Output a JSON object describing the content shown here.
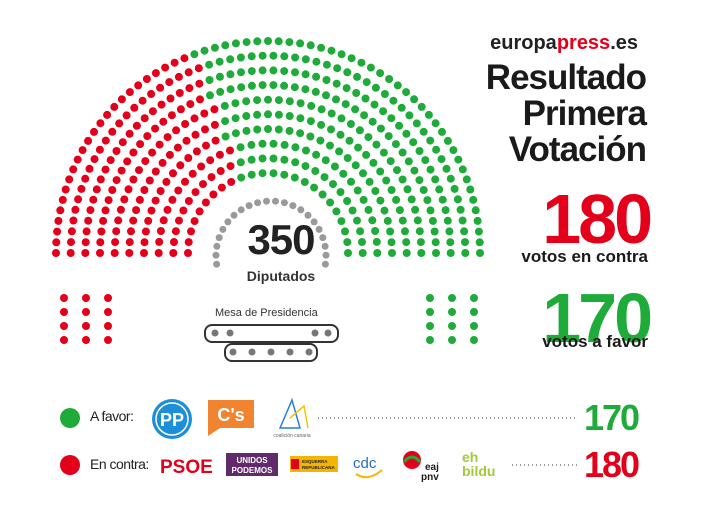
{
  "header": {
    "brand_left": "europa",
    "brand_accent": "press",
    "brand_right": ".es",
    "title_line1": "Resultado",
    "title_line2": "Primera",
    "title_line3": "Votación"
  },
  "results": {
    "against_votes": "180",
    "against_label": "votos en contra",
    "for_votes": "170",
    "for_label": "votos a favor"
  },
  "hemicycle": {
    "total_seats": "350",
    "seats_label": "Diputados",
    "presidency_label": "Mesa de Presidencia",
    "seats_for": 170,
    "seats_against": 180,
    "colors": {
      "for": "#1fab3a",
      "against": "#e3001b",
      "presidency": "#9a9a9a",
      "outline": "#333333"
    }
  },
  "legend": {
    "for": {
      "label": "A favor:",
      "parties": [
        "PP",
        "C's",
        "coalición canaria"
      ],
      "total": "170"
    },
    "against": {
      "label": "En contra:",
      "parties": [
        "PSOE",
        "UNIDOS PODEMOS",
        "ESQUERRA REPUBLICANA",
        "cdc",
        "eaj pnv",
        "eh bildu"
      ],
      "total": "180"
    }
  },
  "logos": {
    "pp": "PP",
    "cs": "C's",
    "cc": "coalición canaria",
    "psoe": "PSOE",
    "up_line1": "UNIDOS",
    "up_line2": "PODEMOS",
    "erc_line1": "ESQUERRA",
    "erc_line2": "REPUBLICANA",
    "cdc": "cdc",
    "pnv_line1": "eaj",
    "pnv_line2": "pnv",
    "bildu_line1": "eh",
    "bildu_line2": "bildu"
  }
}
